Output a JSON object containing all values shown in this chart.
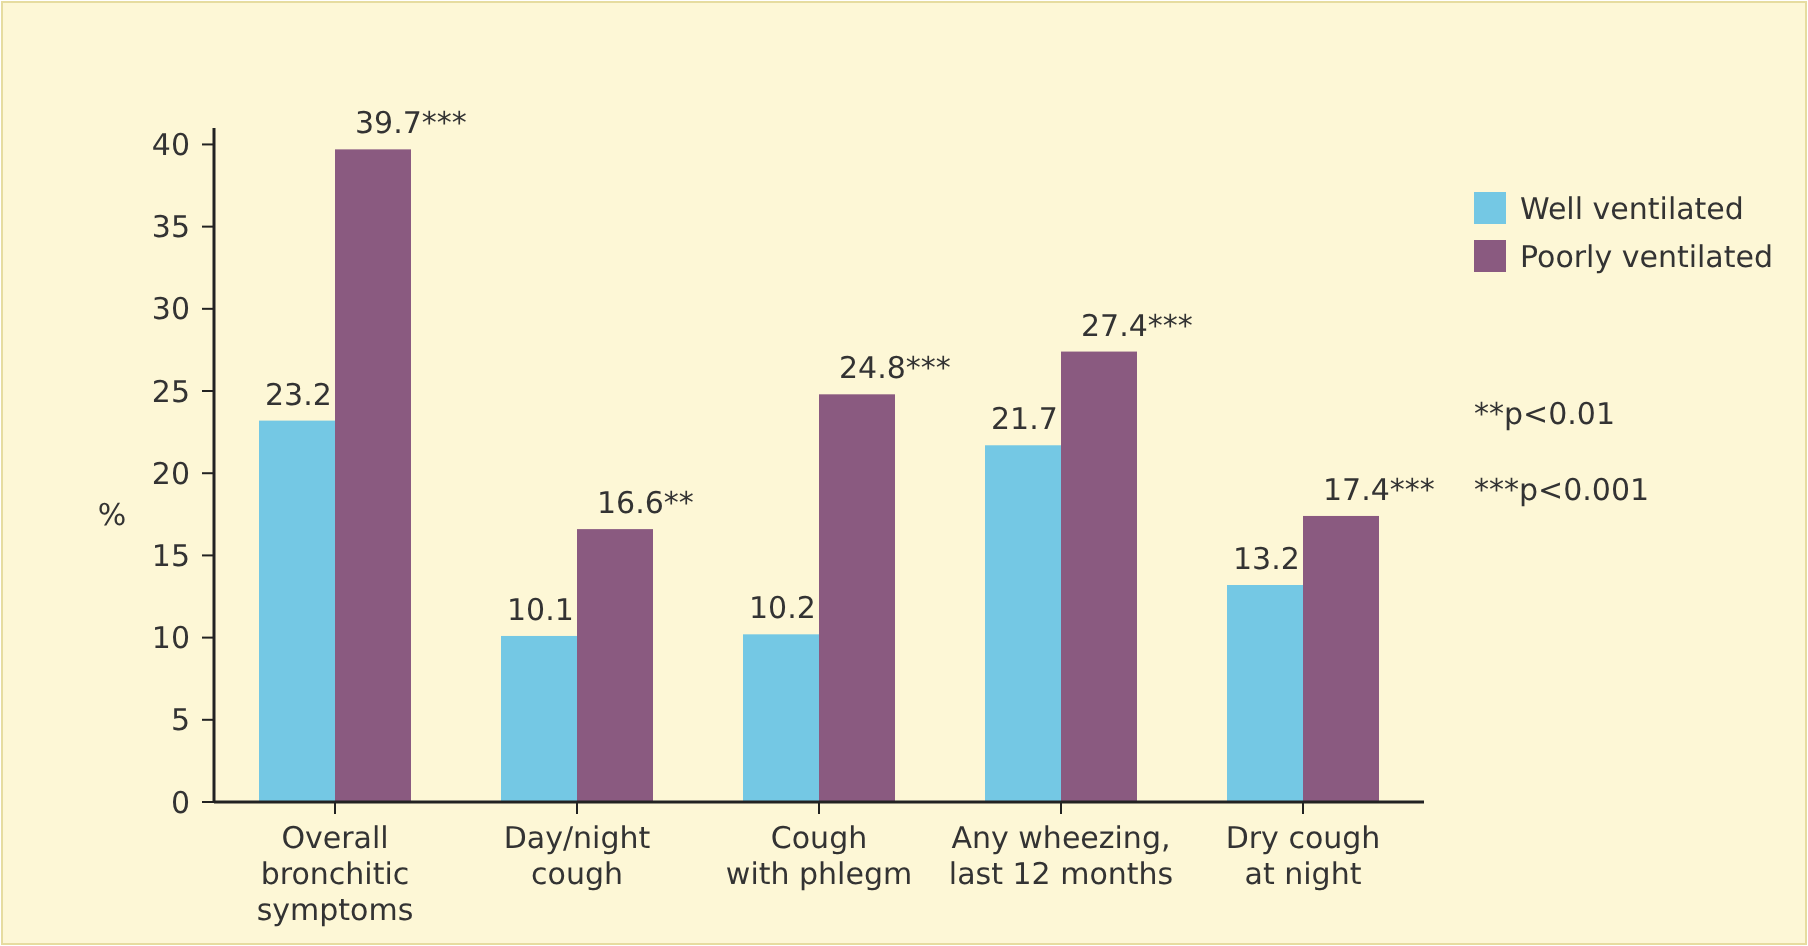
{
  "chart_data": {
    "type": "bar",
    "ylabel": "%",
    "categories": [
      "Overall\nbronchitic\nsymptoms",
      "Day/night\ncough",
      "Cough\nwith phlegm",
      "Any wheezing,\nlast 12 months",
      "Dry cough\nat night"
    ],
    "series": [
      {
        "name": "Well ventilated",
        "color": "#74c8e4",
        "values": [
          23.2,
          10.1,
          10.2,
          21.7,
          13.2
        ],
        "value_labels": [
          "23.2",
          "10.1",
          "10.2",
          "21.7",
          "13.2"
        ]
      },
      {
        "name": "Poorly ventilated",
        "color": "#8a5a80",
        "values": [
          39.7,
          16.6,
          24.8,
          27.4,
          17.4
        ],
        "value_labels": [
          "39.7***",
          "16.6**",
          "24.8***",
          "27.4***",
          "17.4***"
        ]
      }
    ],
    "ylim": [
      0,
      41
    ],
    "yticks": [
      0,
      5,
      10,
      15,
      20,
      25,
      30,
      35,
      40
    ],
    "grid": false,
    "legend": "right",
    "annotations": [
      "**p<0.01",
      "***p<0.001"
    ]
  }
}
